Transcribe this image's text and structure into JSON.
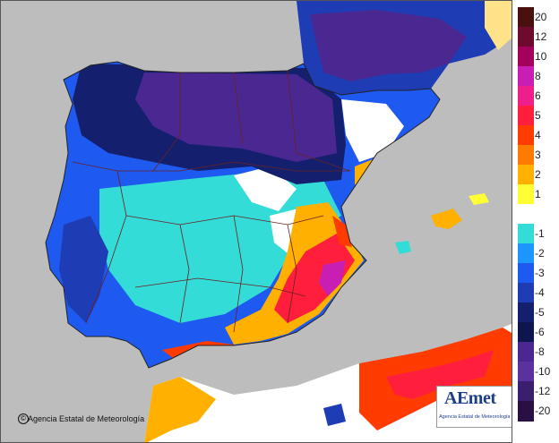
{
  "credit": {
    "symbol": "©",
    "text": "Agencia Estatal de Meteorología"
  },
  "logo": {
    "wordmark": "AEmet",
    "subtitle": "Agencia Estatal de Meteorología"
  },
  "legend": {
    "bins": [
      {
        "label": "20",
        "color": "#4a0f0f"
      },
      {
        "label": "12",
        "color": "#6e0a2e"
      },
      {
        "label": "10",
        "color": "#a3005e"
      },
      {
        "label": "8",
        "color": "#c81eb4"
      },
      {
        "label": "6",
        "color": "#ee1f8a"
      },
      {
        "label": "5",
        "color": "#ff1f3c"
      },
      {
        "label": "4",
        "color": "#ff3b00"
      },
      {
        "label": "3",
        "color": "#ff7a00"
      },
      {
        "label": "2",
        "color": "#ffb000"
      },
      {
        "label": "1",
        "color": "#ffff33"
      },
      {
        "label": "",
        "color": "#ffffff"
      },
      {
        "label": "-1",
        "color": "#33dcd7"
      },
      {
        "label": "-2",
        "color": "#1e96ff"
      },
      {
        "label": "-3",
        "color": "#1e5af0"
      },
      {
        "label": "-4",
        "color": "#1e3cb4"
      },
      {
        "label": "-5",
        "color": "#14206e"
      },
      {
        "label": "-6",
        "color": "#0e1650"
      },
      {
        "label": "-8",
        "color": "#4b2891"
      },
      {
        "label": "-10",
        "color": "#5a32a0"
      },
      {
        "label": "-12",
        "color": "#3c1e6e"
      },
      {
        "label": "-20",
        "color": "#2a0f45"
      }
    ]
  },
  "colors": {
    "sea": "#bdbdbd",
    "borders": "#6b2020",
    "coast": "#222222"
  }
}
